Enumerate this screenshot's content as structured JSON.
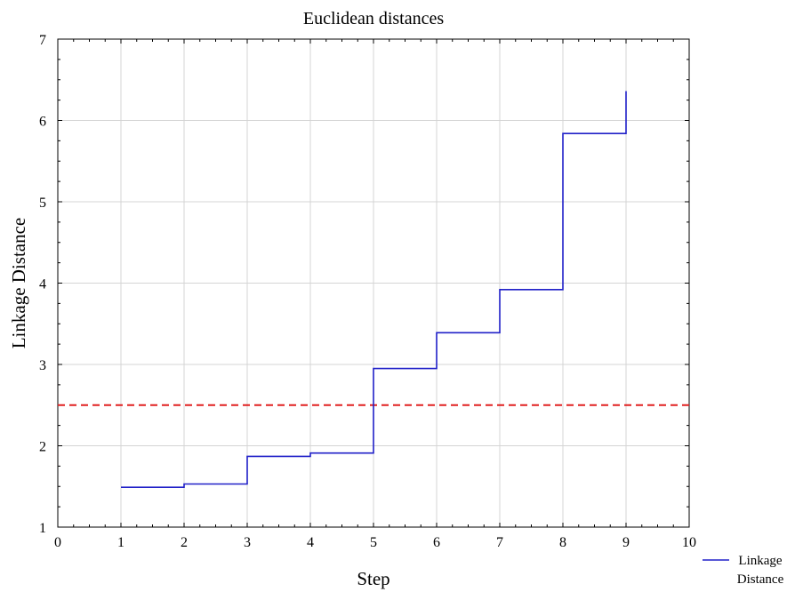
{
  "chart_data": {
    "type": "line",
    "title": "Euclidean distances",
    "xlabel": "Step",
    "ylabel": "Linkage Distance",
    "xlim": [
      0,
      10
    ],
    "ylim": [
      1,
      7
    ],
    "xticks": [
      0,
      1,
      2,
      3,
      4,
      5,
      6,
      7,
      8,
      9,
      10
    ],
    "yticks": [
      1,
      2,
      3,
      4,
      5,
      6,
      7
    ],
    "grid": true,
    "legend_position": "bottom-right outside",
    "series": [
      {
        "name": "Linkage Distance",
        "step": "post",
        "color": "#2020c8",
        "x": [
          1,
          2,
          3,
          4,
          5,
          6,
          7,
          8,
          9
        ],
        "y": [
          1.49,
          1.53,
          1.87,
          1.91,
          2.95,
          3.39,
          3.92,
          5.84,
          6.36
        ]
      }
    ],
    "reference_line": {
      "y": 2.5,
      "style": "dashed",
      "color": "#e02020"
    }
  }
}
